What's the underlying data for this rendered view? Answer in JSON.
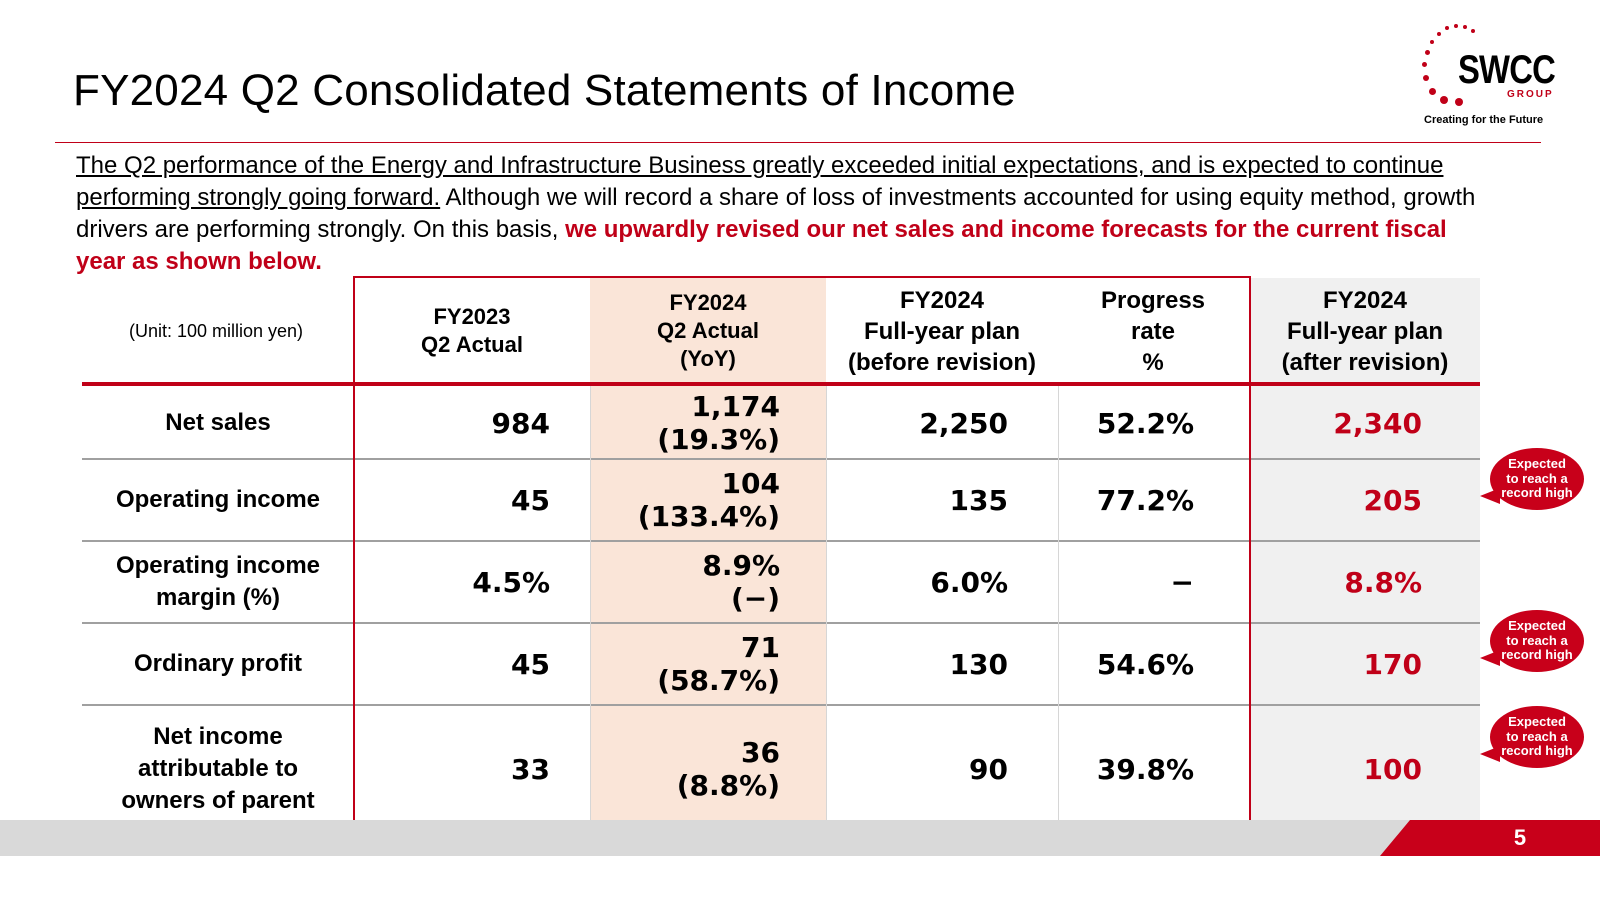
{
  "slide": {
    "title": "FY2024 Q2 Consolidated Statements of Income",
    "page_number": "5"
  },
  "logo": {
    "wordmark": "SWCC",
    "group": "GROUP",
    "tagline": "Creating for the Future"
  },
  "intro": {
    "underlined": "The Q2 performance of the Energy and Infrastructure Business greatly exceeded initial expectations, and is expected to continue performing strongly going forward.",
    "plain": " Although we will record a share of loss of investments accounted for using equity method, growth drivers are performing strongly. On this basis, ",
    "emphasis": "we upwardly revised our net sales and income forecasts for the current fiscal year as shown below."
  },
  "table": {
    "unit_note": "(Unit: 100 million yen)",
    "headers": {
      "h1": [
        "FY2023",
        "Q2 Actual"
      ],
      "h2": [
        "FY2024",
        "Q2 Actual",
        "(YoY)"
      ],
      "h3": [
        "FY2024",
        "Full-year plan",
        "(before revision)"
      ],
      "h4": [
        "Progress",
        "rate",
        "%"
      ],
      "h5": [
        "FY2024",
        "Full-year plan",
        "(after revision)"
      ]
    },
    "rows": [
      {
        "label": [
          "Net sales"
        ],
        "fy2023": "984",
        "fy2024": "1,174",
        "yoy": "(19.3%)",
        "plan_before": "2,250",
        "progress": "52.2%",
        "plan_after": "2,340"
      },
      {
        "label": [
          "Operating income"
        ],
        "fy2023": "45",
        "fy2024": "104",
        "yoy": "(133.4%)",
        "plan_before": "135",
        "progress": "77.2%",
        "plan_after": "205"
      },
      {
        "label": [
          "Operating income",
          "margin (%)"
        ],
        "fy2023": "4.5%",
        "fy2024": "8.9%",
        "yoy": "(−)",
        "plan_before": "6.0%",
        "progress": "−",
        "plan_after": "8.8%"
      },
      {
        "label": [
          "Ordinary profit"
        ],
        "fy2023": "45",
        "fy2024": "71",
        "yoy": "(58.7%)",
        "plan_before": "130",
        "progress": "54.6%",
        "plan_after": "170"
      },
      {
        "label": [
          "Net income",
          "attributable to",
          "owners of parent"
        ],
        "fy2023": "33",
        "fy2024": "36",
        "yoy": "(8.8%)",
        "plan_before": "90",
        "progress": "39.8%",
        "plan_after": "100"
      }
    ]
  },
  "callouts": [
    [
      "Expected",
      "to reach a",
      "record high"
    ],
    [
      "Expected",
      "to reach a",
      "record high"
    ],
    [
      "Expected",
      "to reach a",
      "record high"
    ]
  ],
  "colors": {
    "accent_red": "#c00018",
    "yoy_shade": "#fae5d8",
    "after_shade": "#f0f0f0"
  }
}
